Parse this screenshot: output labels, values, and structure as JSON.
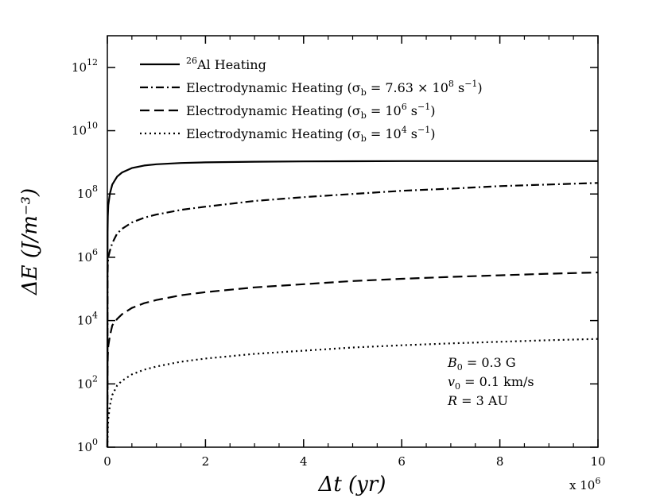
{
  "chart_data": {
    "type": "line",
    "title": "",
    "xlabel": "Δt (yr)",
    "ylabel": "ΔE (J/m⁻³)",
    "x_scale_label": "x 10",
    "x_scale_exp": "6",
    "x_scale_note": "x values in units of 10^6 yr",
    "xlim": [
      0,
      10
    ],
    "ylim_log10": [
      0,
      13
    ],
    "yscale": "log",
    "x_ticks": [
      0,
      2,
      4,
      6,
      8,
      10
    ],
    "x_tick_labels": [
      "0",
      "2",
      "4",
      "6",
      "8",
      "10"
    ],
    "y_ticks_log10": [
      0,
      2,
      4,
      6,
      8,
      10,
      12
    ],
    "y_tick_labels": [
      {
        "base": "10",
        "exp": "0"
      },
      {
        "base": "10",
        "exp": "2"
      },
      {
        "base": "10",
        "exp": "4"
      },
      {
        "base": "10",
        "exp": "6"
      },
      {
        "base": "10",
        "exp": "8"
      },
      {
        "base": "10",
        "exp": "10"
      },
      {
        "base": "10",
        "exp": "12"
      }
    ],
    "grid": false,
    "legend_position": "top-left",
    "series": [
      {
        "name": "26Al Heating",
        "legend": {
          "sup": "26",
          "text": "Al Heating"
        },
        "style": "solid",
        "x": [
          0.005,
          0.01,
          0.02,
          0.05,
          0.1,
          0.2,
          0.3,
          0.5,
          0.75,
          1,
          1.5,
          2,
          3,
          4,
          5,
          6,
          7,
          8,
          9,
          10
        ],
        "log10_y": [
          6.8,
          7.3,
          7.65,
          8.0,
          8.3,
          8.55,
          8.68,
          8.82,
          8.9,
          8.94,
          8.98,
          9.0,
          9.02,
          9.03,
          9.035,
          9.04,
          9.04,
          9.04,
          9.04,
          9.04
        ]
      },
      {
        "name": "Electrodynamic Heating (σb = 7.63 × 10^8 s^-1)",
        "legend": {
          "prefix": "Electrodynamic Heating (σ",
          "sub": "b",
          "mid": " = 7.63 × 10",
          "sup": "8",
          "mid2": " s",
          "sup2": "−1",
          "suffix": ")"
        },
        "style": "dashdot",
        "x": [
          0.005,
          0.01,
          0.02,
          0.05,
          0.1,
          0.2,
          0.3,
          0.5,
          0.75,
          1,
          1.5,
          2,
          3,
          4,
          5,
          6,
          7,
          8,
          9,
          10
        ],
        "log10_y": [
          5.4,
          5.8,
          6.0,
          6.2,
          6.45,
          6.75,
          6.9,
          7.1,
          7.25,
          7.35,
          7.5,
          7.6,
          7.78,
          7.9,
          8.0,
          8.1,
          8.17,
          8.25,
          8.3,
          8.35
        ]
      },
      {
        "name": "Electrodynamic Heating (σb = 10^6 s^-1)",
        "legend": {
          "prefix": "Electrodynamic Heating (σ",
          "sub": "b",
          "mid": " = 10",
          "sup": "6",
          "mid2": " s",
          "sup2": "−1",
          "suffix": ")"
        },
        "style": "dashed",
        "x": [
          0.005,
          0.01,
          0.02,
          0.05,
          0.1,
          0.2,
          0.3,
          0.5,
          0.75,
          1,
          1.5,
          2,
          3,
          4,
          5,
          6,
          7,
          8,
          9,
          10
        ],
        "log10_y": [
          2.5,
          2.9,
          3.2,
          3.5,
          3.85,
          4.05,
          4.2,
          4.4,
          4.55,
          4.65,
          4.8,
          4.9,
          5.05,
          5.15,
          5.25,
          5.32,
          5.38,
          5.43,
          5.48,
          5.52
        ]
      },
      {
        "name": "Electrodynamic Heating (σb = 10^4 s^-1)",
        "legend": {
          "prefix": "Electrodynamic Heating (σ",
          "sub": "b",
          "mid": " = 10",
          "sup": "4",
          "mid2": " s",
          "sup2": "−1",
          "suffix": ")"
        },
        "style": "dotted",
        "x": [
          0.005,
          0.01,
          0.02,
          0.05,
          0.1,
          0.2,
          0.3,
          0.5,
          0.75,
          1,
          1.5,
          2,
          3,
          4,
          5,
          6,
          7,
          8,
          9,
          10
        ],
        "log10_y": [
          0.3,
          0.6,
          0.9,
          1.3,
          1.65,
          1.95,
          2.1,
          2.3,
          2.45,
          2.55,
          2.7,
          2.8,
          2.95,
          3.05,
          3.15,
          3.22,
          3.28,
          3.33,
          3.38,
          3.42
        ]
      }
    ],
    "annotation": [
      {
        "sym": "B",
        "sub": "0",
        "rest": " = 0.3 G"
      },
      {
        "sym": "v",
        "sub": "0",
        "rest": " = 0.1 km/s"
      },
      {
        "sym": "R",
        "sub": "",
        "rest": " = 3 AU"
      }
    ]
  }
}
